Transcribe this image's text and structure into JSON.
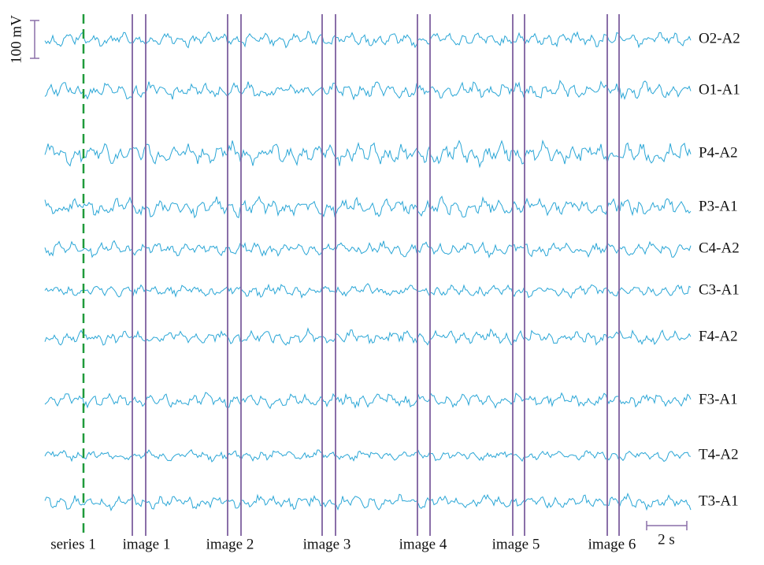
{
  "scale": {
    "amplitude": "100 mV",
    "time": "2 s"
  },
  "channels": [
    "O2-A2",
    "O1-A1",
    "P4-A2",
    "P3-A1",
    "C4-A2",
    "C3-A1",
    "F4-A2",
    "F3-A1",
    "T4-A2",
    "T3-A1"
  ],
  "markers": [
    "series 1",
    "image 1",
    "image 2",
    "image 3",
    "image 4",
    "image 5",
    "image 6"
  ]
}
